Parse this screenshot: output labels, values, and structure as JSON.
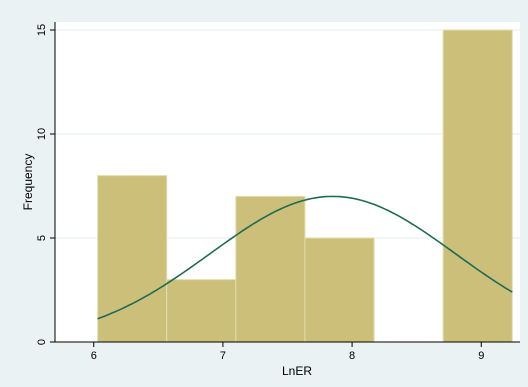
{
  "chart_data": {
    "type": "bar",
    "subtype": "histogram-with-normal-density",
    "xlabel": "LnER",
    "ylabel": "Frequency",
    "xlim": [
      5.7,
      9.3
    ],
    "ylim": [
      0,
      15
    ],
    "xticks": [
      6,
      7,
      8,
      9
    ],
    "yticks": [
      0,
      5,
      10,
      15
    ],
    "bins": [
      {
        "x0": 6.03,
        "x1": 6.565,
        "count": 8
      },
      {
        "x0": 6.565,
        "x1": 7.1,
        "count": 3
      },
      {
        "x0": 7.1,
        "x1": 7.635,
        "count": 7
      },
      {
        "x0": 7.635,
        "x1": 8.17,
        "count": 5
      },
      {
        "x0": 8.17,
        "x1": 8.705,
        "count": 0
      },
      {
        "x0": 8.705,
        "x1": 9.24,
        "count": 15
      }
    ],
    "normal_curve": {
      "mean": 7.85,
      "sd": 0.95,
      "peak": 7.0,
      "x_range": [
        6.03,
        9.24
      ]
    },
    "grid": true,
    "bar_color": "#cbbf7a",
    "bar_edge_color": "#e4dcae",
    "curve_color": "#1f6b55",
    "plot_background": "#ffffff",
    "outer_background": "#eaf2f3"
  }
}
